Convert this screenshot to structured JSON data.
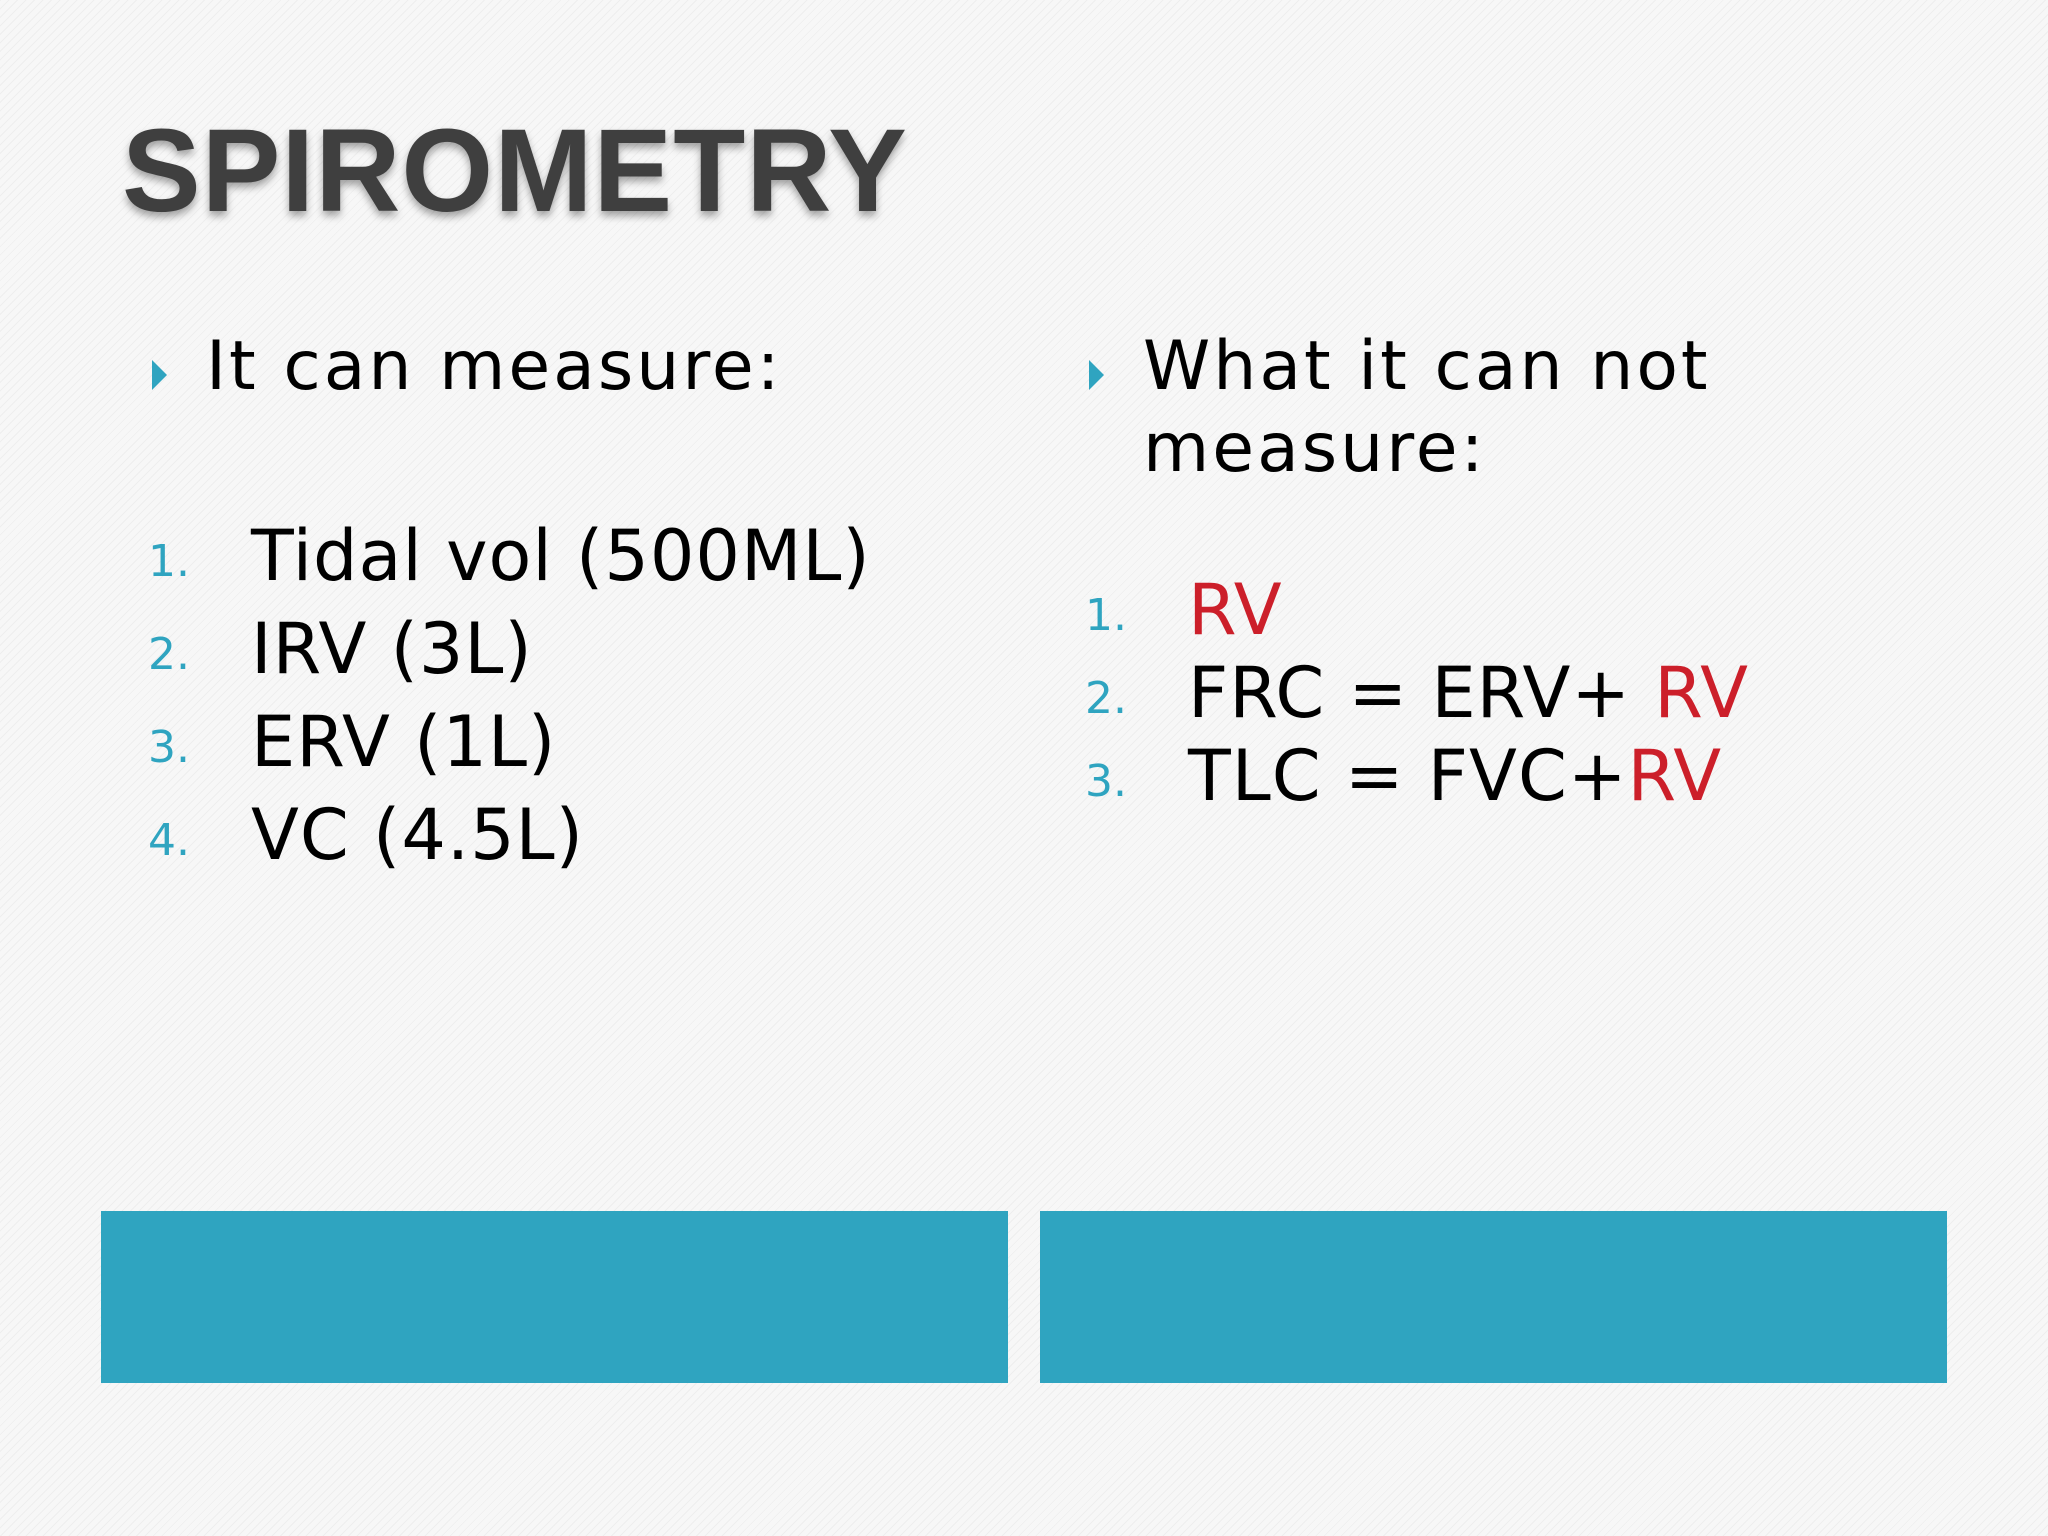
{
  "title": "SPIROMETRY",
  "left": {
    "heading": "It can measure:",
    "items": [
      {
        "num": "1.",
        "text": "Tidal vol (500ML)"
      },
      {
        "num": "2.",
        "text": "IRV (3L)"
      },
      {
        "num": "3.",
        "text": "ERV (1L)"
      },
      {
        "num": "4.",
        "text": "VC (4.5L)"
      }
    ]
  },
  "right": {
    "heading_line1": "What it can not",
    "heading_line2": "measure:",
    "items": [
      {
        "num": "1.",
        "pre": "",
        "red": "RV"
      },
      {
        "num": "2.",
        "pre": "FRC = ERV+ ",
        "red": "RV"
      },
      {
        "num": "3.",
        "pre": "TLC = FVC+",
        "red": "RV"
      }
    ]
  },
  "colors": {
    "accent": "#2fa4c0",
    "highlight": "#cc1f2a",
    "title": "#3f3f3f"
  },
  "icons": {
    "bullet": "triangle-right-icon"
  }
}
